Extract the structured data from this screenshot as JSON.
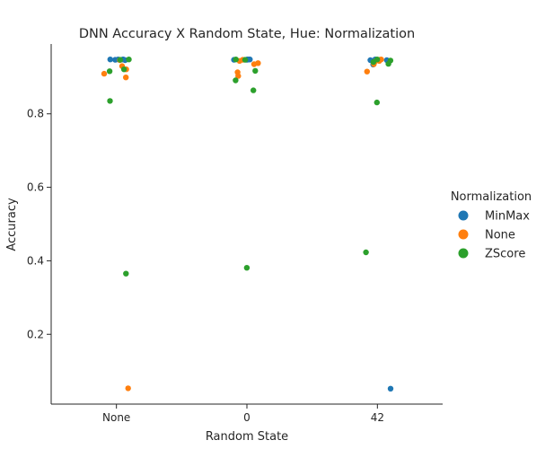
{
  "chart_data": {
    "type": "scatter",
    "title": "DNN Accuracy X Random State, Hue: Normalization",
    "xlabel": "Random State",
    "ylabel": "Accuracy",
    "categories": [
      "None",
      "0",
      "42"
    ],
    "ylim": [
      0.01,
      0.99
    ],
    "yticks": [
      "0.2",
      "0.4",
      "0.6",
      "0.8"
    ],
    "grid": false,
    "legend": {
      "title": "Normalization",
      "placement": "right"
    },
    "series": [
      {
        "name": "MinMax",
        "color": "#1f77b4",
        "points": [
          {
            "x": "None",
            "y": 0.948
          },
          {
            "x": "None",
            "y": 0.948
          },
          {
            "x": "None",
            "y": 0.947
          },
          {
            "x": "None",
            "y": 0.948
          },
          {
            "x": "None",
            "y": 0.946
          },
          {
            "x": "None",
            "y": 0.948
          },
          {
            "x": "0",
            "y": 0.947
          },
          {
            "x": "0",
            "y": 0.948
          },
          {
            "x": "0",
            "y": 0.948
          },
          {
            "x": "0",
            "y": 0.947
          },
          {
            "x": "0",
            "y": 0.948
          },
          {
            "x": "0",
            "y": 0.948
          },
          {
            "x": "42",
            "y": 0.947
          },
          {
            "x": "42",
            "y": 0.946
          },
          {
            "x": "42",
            "y": 0.934
          },
          {
            "x": "42",
            "y": 0.948
          },
          {
            "x": "42",
            "y": 0.946
          },
          {
            "x": "42",
            "y": 0.052
          }
        ]
      },
      {
        "name": "None",
        "color": "#ff7f0e",
        "points": [
          {
            "x": "None",
            "y": 0.93
          },
          {
            "x": "None",
            "y": 0.921
          },
          {
            "x": "None",
            "y": 0.899
          },
          {
            "x": "None",
            "y": 0.909
          },
          {
            "x": "None",
            "y": 0.946
          },
          {
            "x": "None",
            "y": 0.053
          },
          {
            "x": "0",
            "y": 0.944
          },
          {
            "x": "0",
            "y": 0.935
          },
          {
            "x": "0",
            "y": 0.913
          },
          {
            "x": "0",
            "y": 0.938
          },
          {
            "x": "0",
            "y": 0.903
          },
          {
            "x": "0",
            "y": 0.947
          },
          {
            "x": "42",
            "y": 0.947
          },
          {
            "x": "42",
            "y": 0.935
          },
          {
            "x": "42",
            "y": 0.942
          },
          {
            "x": "42",
            "y": 0.944
          },
          {
            "x": "42",
            "y": 0.915
          },
          {
            "x": "42",
            "y": 0.948
          }
        ]
      },
      {
        "name": "ZScore",
        "color": "#2ca02c",
        "points": [
          {
            "x": "None",
            "y": 0.948
          },
          {
            "x": "None",
            "y": 0.916
          },
          {
            "x": "None",
            "y": 0.835
          },
          {
            "x": "None",
            "y": 0.921
          },
          {
            "x": "None",
            "y": 0.365
          },
          {
            "x": "None",
            "y": 0.947
          },
          {
            "x": "0",
            "y": 0.891
          },
          {
            "x": "0",
            "y": 0.381
          },
          {
            "x": "0",
            "y": 0.917
          },
          {
            "x": "0",
            "y": 0.864
          },
          {
            "x": "0",
            "y": 0.948
          },
          {
            "x": "0",
            "y": 0.947
          },
          {
            "x": "42",
            "y": 0.945
          },
          {
            "x": "42",
            "y": 0.936
          },
          {
            "x": "42",
            "y": 0.831
          },
          {
            "x": "42",
            "y": 0.941
          },
          {
            "x": "42",
            "y": 0.948
          },
          {
            "x": "42",
            "y": 0.423
          }
        ]
      }
    ]
  }
}
